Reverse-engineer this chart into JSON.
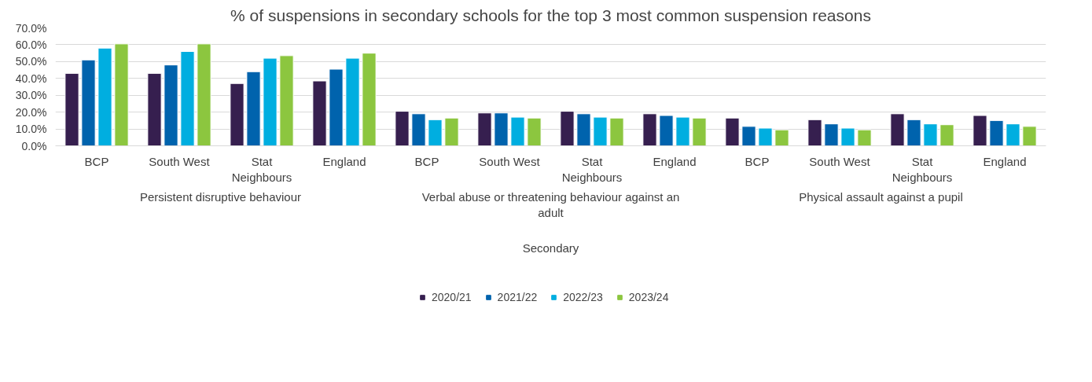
{
  "chart_data": {
    "type": "bar",
    "title": "% of suspensions in secondary schools for the top 3 most common suspension reasons",
    "categories": [
      "BCP",
      "South West",
      "Stat\nNeighbours",
      "England",
      "BCP",
      "South West",
      "Stat\nNeighbours",
      "England",
      "BCP",
      "South West",
      "Stat\nNeighbours",
      "England"
    ],
    "annotations": [
      "Persistent disruptive behaviour",
      "Verbal abuse or threatening behaviour against an\nadult",
      "Physical assault against a pupil",
      "Secondary"
    ],
    "series": [
      {
        "name": "2020/21",
        "color": "#361f4f",
        "values": [
          43.0,
          43.0,
          37.0,
          38.5,
          20.5,
          19.5,
          20.5,
          19.0,
          16.5,
          15.5,
          19.0,
          18.0
        ]
      },
      {
        "name": "2021/22",
        "color": "#0063ad",
        "values": [
          51.0,
          48.0,
          44.0,
          45.5,
          19.0,
          19.5,
          19.0,
          18.0,
          11.5,
          13.0,
          15.5,
          15.0
        ]
      },
      {
        "name": "2022/23",
        "color": "#00aee0",
        "values": [
          58.0,
          56.0,
          52.0,
          52.0,
          15.5,
          17.0,
          17.0,
          17.0,
          10.5,
          10.5,
          13.0,
          13.0
        ]
      },
      {
        "name": "2023/24",
        "color": "#8cc63f",
        "values": [
          60.5,
          60.5,
          53.5,
          55.0,
          16.5,
          16.5,
          16.5,
          16.5,
          9.5,
          9.5,
          12.5,
          11.5
        ]
      }
    ],
    "ylim": [
      0,
      70
    ],
    "yticks": [
      {
        "value": 0,
        "label": "0.0%"
      },
      {
        "value": 10,
        "label": "10.0%"
      },
      {
        "value": 20,
        "label": "20.0%"
      },
      {
        "value": 30,
        "label": "30.0%"
      },
      {
        "value": 40,
        "label": "40.0%"
      },
      {
        "value": 50,
        "label": "50.0%"
      },
      {
        "value": 60,
        "label": "60.0%"
      },
      {
        "value": 70,
        "label": "70.0%"
      }
    ],
    "grid": "y",
    "legend": "bottom"
  }
}
